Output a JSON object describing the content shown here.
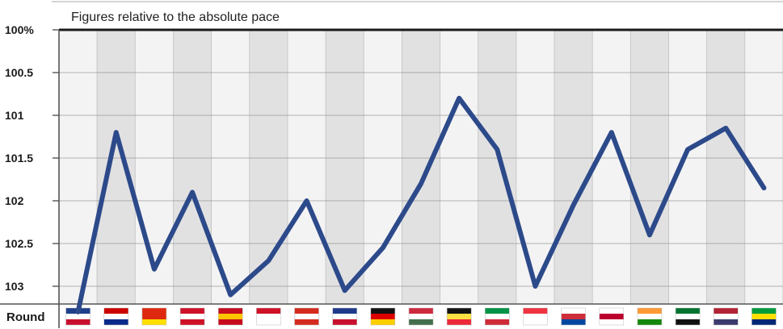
{
  "chart_data": {
    "type": "line",
    "title": "Figures relative to the absolute pace",
    "xlabel": "Round",
    "ylabel": "",
    "y_reversed": true,
    "ylim": [
      100,
      103.2
    ],
    "y_ticks": [
      "100%",
      "100.5",
      "101",
      "101.5",
      "102",
      "102.5",
      "103"
    ],
    "grid": true,
    "categories": [
      "flag-australia",
      "flag-malaysia",
      "flag-china",
      "flag-bahrain",
      "flag-spain",
      "flag-monaco",
      "flag-canada",
      "flag-great-britain",
      "flag-germany",
      "flag-hungary",
      "flag-belgium",
      "flag-italy",
      "flag-singapore",
      "flag-korea",
      "flag-japan",
      "flag-india",
      "flag-uae",
      "flag-usa",
      "flag-brazil"
    ],
    "series": [
      {
        "color": "#2c4a8a",
        "values": [
          103.3,
          101.2,
          102.8,
          101.9,
          103.1,
          102.7,
          102.0,
          103.05,
          102.55,
          101.8,
          100.8,
          101.4,
          103.0,
          102.05,
          101.2,
          102.4,
          101.4,
          101.15,
          101.85
        ]
      }
    ]
  }
}
